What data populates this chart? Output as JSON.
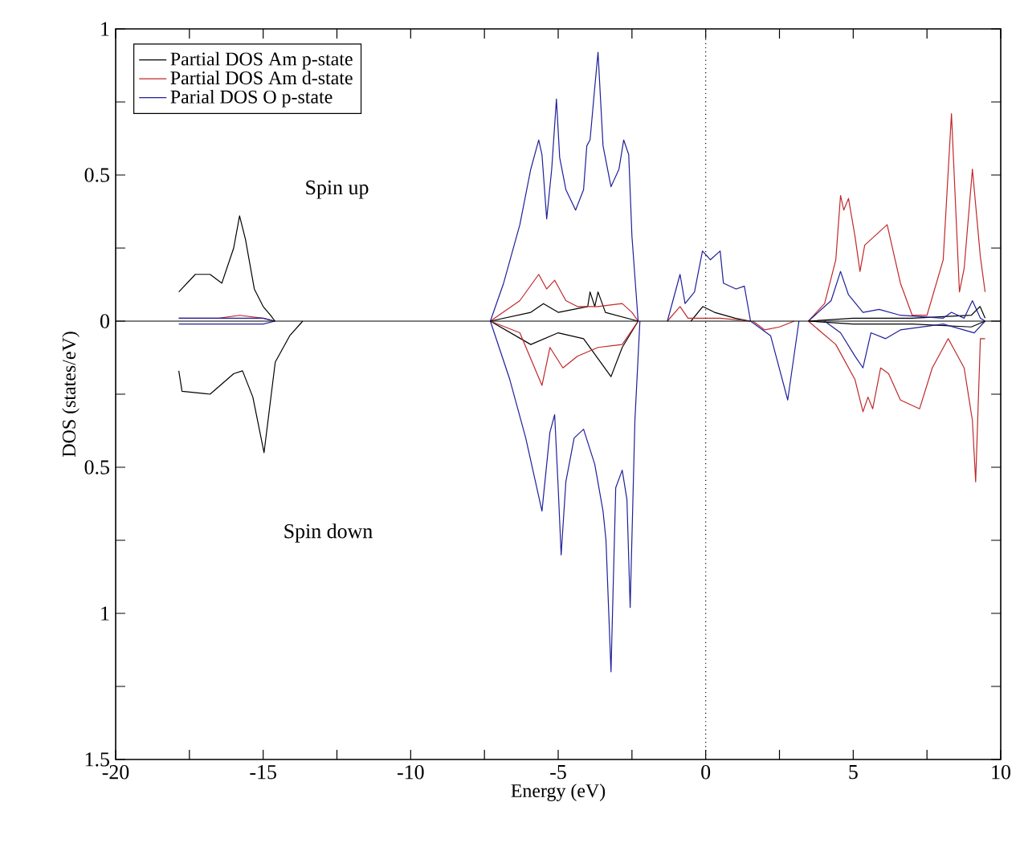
{
  "chart_data": {
    "type": "line",
    "xlabel": "Energy (eV)",
    "ylabel": "DOS (states/eV)",
    "xlim": [
      -20,
      10
    ],
    "xticks": [
      -20,
      {
        "value": -17.5,
        "label": null
      },
      -15,
      {
        "value": -12.5,
        "label": null
      },
      -10,
      {
        "value": -7.5,
        "label": null
      },
      -5,
      {
        "value": -2.5,
        "label": null
      },
      0,
      {
        "value": 2.5,
        "label": null
      },
      5,
      {
        "value": 7.5,
        "label": null
      },
      10
    ],
    "ylim": [
      -1.5,
      1
    ],
    "yticks": [
      1,
      {
        "value": 0.75,
        "label": null
      },
      0.5,
      {
        "value": 0.25,
        "label": null
      },
      0,
      {
        "value": -0.25,
        "label": null
      },
      {
        "value": -0.5,
        "label": "0.5"
      },
      {
        "value": -0.75,
        "label": null
      },
      {
        "value": -1,
        "label": "1"
      },
      {
        "value": -1.25,
        "label": null
      },
      {
        "value": -1.5,
        "label": "1.5"
      }
    ],
    "legend": "top left",
    "grid": false,
    "marker": "none",
    "line_style": "solid",
    "ref_lines": [
      {
        "axis": "x",
        "value": 0,
        "label": null,
        "color": "#000000",
        "line_style": "dotted"
      },
      {
        "axis": "y",
        "value": 0,
        "label": null,
        "color": "#000000",
        "line_style": "solid"
      }
    ],
    "annotations": [
      "Spin up",
      "Spin down"
    ],
    "series": [
      {
        "name": "Partial DOS Am p-state",
        "color": "#000000",
        "x": [
          -17.86,
          -17.3,
          -16.8,
          -16.4,
          -16.0,
          -15.8,
          -15.6,
          -15.3,
          -15.0,
          -14.75,
          -14.6,
          -10,
          -7.3,
          -5.93,
          -5.5,
          -5.0,
          -4.0,
          -3.92,
          -3.76,
          -3.65,
          -3.4,
          -2.29,
          -1.5,
          -0.5,
          -0.1,
          0.3,
          1.0,
          1.5,
          2.5,
          3.5,
          5.0,
          7.0,
          9.0,
          9.3,
          9.47
        ],
        "values": [
          0.1,
          0.16,
          0.16,
          0.13,
          0.25,
          0.36,
          0.28,
          0.11,
          0.05,
          0.02,
          0,
          null,
          0,
          0.03,
          0.06,
          0.03,
          0.05,
          0.1,
          0.05,
          0.1,
          0.03,
          0,
          null,
          0,
          0.05,
          0.03,
          0.01,
          0,
          null,
          0,
          0.01,
          0.01,
          0.02,
          0.05,
          0.01
        ]
      },
      {
        "name": "Partial DOS Am d-state",
        "color": "#c0282a",
        "x": [
          -17.86,
          -16.5,
          -15.8,
          -15.0,
          -14.6,
          -10,
          -7.3,
          -6.3,
          -5.66,
          -5.39,
          -5.12,
          -4.74,
          -4.35,
          -3.65,
          -2.83,
          -2.5,
          -2.29,
          -1.8,
          -1.3,
          -0.87,
          -0.6,
          0,
          0.5,
          1.5,
          2.5,
          3.48,
          4.03,
          4.41,
          4.57,
          4.68,
          4.84,
          5.06,
          5.23,
          5.39,
          6.15,
          6.6,
          7.0,
          7.5,
          8.05,
          8.33,
          8.6,
          8.76,
          9.04,
          9.31,
          9.47
        ],
        "values": [
          0.01,
          0.01,
          0.02,
          0.01,
          0,
          null,
          0,
          0.07,
          0.16,
          0.11,
          0.14,
          0.07,
          0.05,
          0.05,
          0.06,
          0.03,
          0,
          null,
          0,
          0.05,
          0.01,
          0.01,
          0.01,
          0,
          null,
          0,
          0.06,
          0.21,
          0.43,
          0.38,
          0.42,
          0.29,
          0.17,
          0.26,
          0.33,
          0.13,
          0.02,
          0.02,
          0.21,
          0.71,
          0.1,
          0.18,
          0.52,
          0.22,
          0.1
        ]
      },
      {
        "name": "Parial DOS O p-state",
        "color": "#1f1f99",
        "x": [
          -17.86,
          -16,
          -15,
          -14.6,
          -10,
          -7.3,
          -6.85,
          -6.3,
          -5.93,
          -5.66,
          -5.55,
          -5.39,
          -5.22,
          -5.06,
          -4.95,
          -4.74,
          -4.41,
          -4.14,
          -4.03,
          -3.92,
          -3.76,
          -3.65,
          -3.48,
          -3.21,
          -2.94,
          -2.78,
          -2.61,
          -2.5,
          -2.29,
          -1.8,
          -1.3,
          -0.87,
          -0.7,
          -0.38,
          -0.11,
          0.16,
          0.49,
          0.6,
          1.03,
          1.31,
          1.52,
          2.5,
          3.48,
          4.25,
          4.57,
          4.84,
          5.33,
          5.88,
          6.6,
          8.05,
          8.33,
          8.76,
          9.04,
          9.31,
          9.47
        ],
        "values": [
          0.01,
          0.01,
          0.01,
          0,
          null,
          0,
          0.13,
          0.33,
          0.52,
          0.62,
          0.57,
          0.35,
          0.52,
          0.76,
          0.56,
          0.45,
          0.38,
          0.45,
          0.6,
          0.62,
          0.8,
          0.92,
          0.6,
          0.46,
          0.52,
          0.62,
          0.57,
          0.29,
          0,
          null,
          0,
          0.16,
          0.06,
          0.1,
          0.24,
          0.21,
          0.24,
          0.13,
          0.11,
          0.12,
          0,
          null,
          0,
          0.07,
          0.17,
          0.09,
          0.03,
          0.04,
          0.02,
          0.01,
          0.03,
          0.01,
          0.07,
          0.01,
          0
        ]
      },
      {
        "color": "#000000",
        "x": [
          -17.86,
          -17.75,
          -16.8,
          -16.0,
          -15.7,
          -15.35,
          -14.97,
          -14.59,
          -14.1,
          -13.66,
          -10,
          -7.3,
          -5.93,
          -5.0,
          -4.14,
          -3.21,
          -2.83,
          -2.29,
          -1,
          3.5,
          5.0,
          7.0,
          9.0,
          9.47
        ],
        "values": [
          -0.17,
          -0.24,
          -0.25,
          -0.18,
          -0.17,
          -0.26,
          -0.45,
          -0.14,
          -0.05,
          0,
          null,
          0,
          -0.08,
          -0.04,
          -0.06,
          -0.19,
          -0.09,
          0,
          null,
          0,
          -0.01,
          -0.01,
          -0.02,
          0
        ]
      },
      {
        "color": "#c0282a",
        "x": [
          -7.3,
          -6.3,
          -5.55,
          -5.28,
          -4.84,
          -4.35,
          -3.65,
          -2.83,
          -2.29,
          -1,
          1.6,
          2.0,
          2.5,
          3.0,
          3.2,
          3.48,
          4.41,
          5.06,
          5.33,
          5.5,
          5.66,
          5.93,
          6.2,
          6.6,
          7.25,
          7.68,
          8.22,
          8.76,
          9.04,
          9.15,
          9.31,
          9.47
        ],
        "values": [
          0,
          -0.04,
          -0.22,
          -0.09,
          -0.16,
          -0.12,
          -0.09,
          -0.08,
          0,
          null,
          0,
          -0.03,
          -0.02,
          0,
          null,
          0,
          -0.08,
          -0.2,
          -0.31,
          -0.26,
          -0.3,
          -0.16,
          -0.18,
          -0.27,
          -0.3,
          -0.16,
          -0.06,
          -0.16,
          -0.34,
          -0.55,
          -0.06,
          -0.06
        ]
      },
      {
        "color": "#1f1f99",
        "x": [
          -17.86,
          -16,
          -15,
          -14.6,
          -10,
          -7.3,
          -6.64,
          -6.1,
          -5.77,
          -5.55,
          -5.28,
          -5.12,
          -5.0,
          -4.9,
          -4.74,
          -4.46,
          -4.14,
          -3.76,
          -3.48,
          -3.38,
          -3.21,
          -3.05,
          -2.83,
          -2.67,
          -2.56,
          -2.4,
          -2.23,
          -1.8,
          1.52,
          2.2,
          2.78,
          3.16,
          3.3,
          4.03,
          4.57,
          5.06,
          5.33,
          5.6,
          6.1,
          6.6,
          8.05,
          9.1,
          9.47
        ],
        "values": [
          -0.01,
          -0.01,
          -0.01,
          0,
          null,
          0,
          -0.2,
          -0.4,
          -0.55,
          -0.65,
          -0.38,
          -0.32,
          -0.57,
          -0.8,
          -0.55,
          -0.4,
          -0.37,
          -0.49,
          -0.65,
          -0.75,
          -1.2,
          -0.57,
          -0.51,
          -0.61,
          -0.98,
          -0.34,
          0,
          null,
          0,
          -0.05,
          -0.27,
          0,
          null,
          0,
          -0.04,
          -0.12,
          -0.16,
          -0.04,
          -0.06,
          -0.03,
          -0.01,
          -0.04,
          0
        ]
      }
    ]
  }
}
